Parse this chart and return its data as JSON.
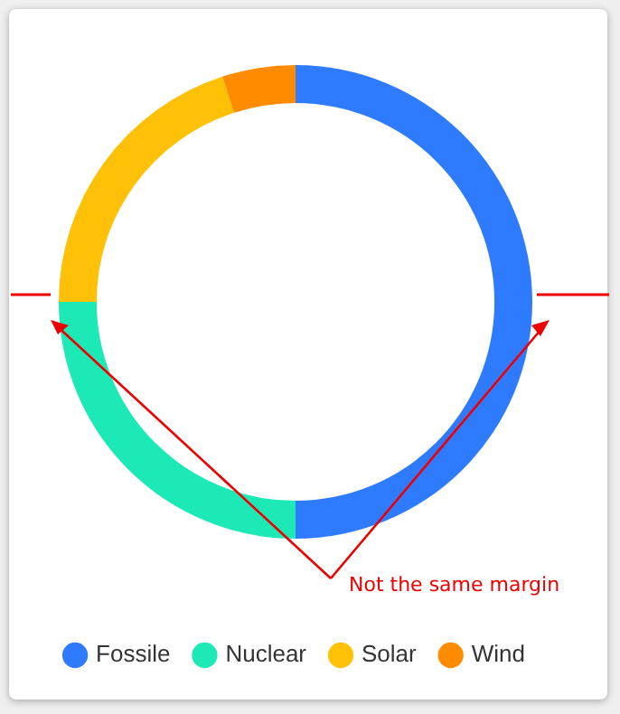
{
  "chart_data": {
    "type": "donut",
    "categories": [
      "Fossile",
      "Nuclear",
      "Solar",
      "Wind"
    ],
    "values": [
      50,
      25,
      20,
      5
    ],
    "colors": [
      "#2f7bff",
      "#1de9b6",
      "#ffc107",
      "#ff8c00"
    ],
    "legend": "bottom",
    "annotations": [
      "Not the same margin"
    ]
  }
}
